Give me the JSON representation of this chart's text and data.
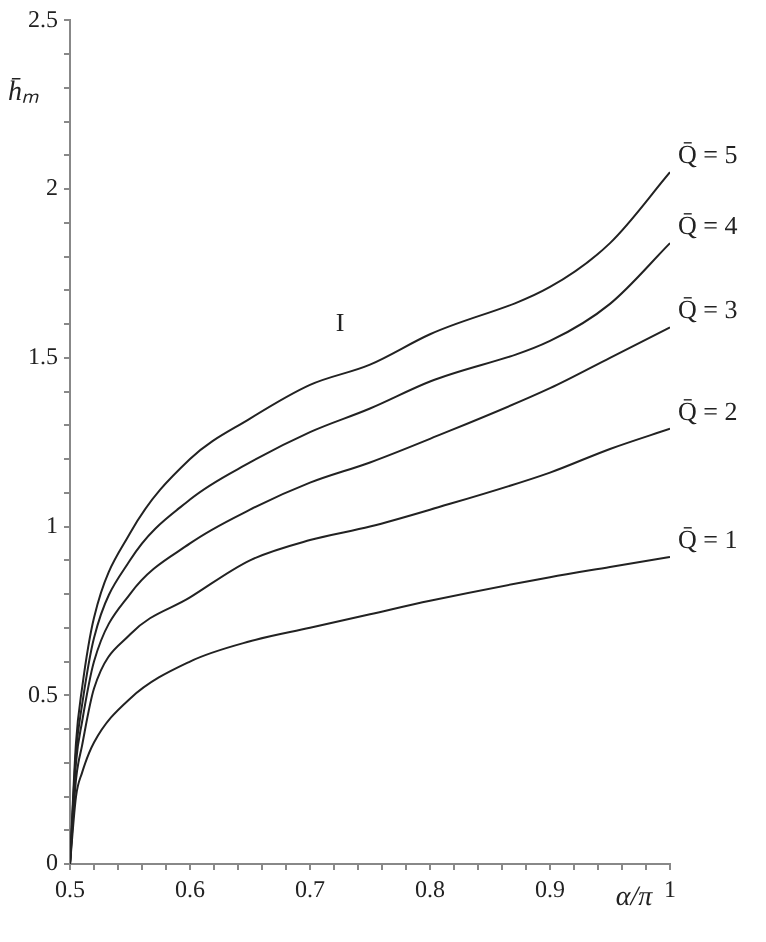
{
  "chart_data": {
    "type": "line",
    "xlabel": "α/π",
    "ylabel": "h̄ₘ",
    "x": [
      0.5,
      0.505,
      0.51,
      0.52,
      0.55,
      0.6,
      0.65,
      0.7,
      0.75,
      0.8,
      0.9,
      0.95,
      1
    ],
    "series": [
      {
        "name": "Q̄ = 1",
        "color": "#222222",
        "values": [
          0,
          0.2,
          0.27,
          0.36,
          0.49,
          0.6,
          0.66,
          0.7,
          0.74,
          0.78,
          0.85,
          0.88,
          0.91
        ]
      },
      {
        "name": "Q̄ = 2",
        "color": "#222222",
        "values": [
          0,
          0.25,
          0.35,
          0.52,
          0.68,
          0.79,
          0.9,
          0.96,
          1.0,
          1.05,
          1.16,
          1.23,
          1.29
        ]
      },
      {
        "name": "Q̄ = 3",
        "color": "#222222",
        "values": [
          0,
          0.3,
          0.42,
          0.6,
          0.8,
          0.95,
          1.05,
          1.13,
          1.19,
          1.26,
          1.41,
          1.5,
          1.59
        ]
      },
      {
        "name": "Q̄ = 4",
        "color": "#222222",
        "values": [
          0,
          0.33,
          0.47,
          0.67,
          0.9,
          1.08,
          1.19,
          1.28,
          1.35,
          1.43,
          1.55,
          1.66,
          1.84
        ]
      },
      {
        "name": "Q̄ = 5",
        "color": "#222222",
        "values": [
          0,
          0.36,
          0.52,
          0.73,
          0.98,
          1.2,
          1.32,
          1.42,
          1.48,
          1.57,
          1.71,
          1.84,
          2.05
        ]
      }
    ],
    "annotations": [
      "I"
    ],
    "xlim": [
      0.5,
      1
    ],
    "ylim": [
      0,
      2.5
    ],
    "xticks": [
      0.5,
      {
        "value": 0.52,
        "label": null
      },
      {
        "value": 0.54,
        "label": null
      },
      {
        "value": 0.56,
        "label": null
      },
      {
        "value": 0.58,
        "label": null
      },
      0.6,
      {
        "value": 0.62,
        "label": null
      },
      {
        "value": 0.64,
        "label": null
      },
      {
        "value": 0.66,
        "label": null
      },
      {
        "value": 0.68,
        "label": null
      },
      0.7,
      {
        "value": 0.72,
        "label": null
      },
      {
        "value": 0.74,
        "label": null
      },
      {
        "value": 0.76,
        "label": null
      },
      {
        "value": 0.78,
        "label": null
      },
      0.8,
      {
        "value": 0.82,
        "label": null
      },
      {
        "value": 0.84,
        "label": null
      },
      {
        "value": 0.86,
        "label": null
      },
      {
        "value": 0.88,
        "label": null
      },
      0.9,
      {
        "value": 0.92,
        "label": null
      },
      {
        "value": 0.94,
        "label": null
      },
      {
        "value": 0.96,
        "label": null
      },
      {
        "value": 0.98,
        "label": null
      },
      1
    ],
    "yticks": [
      0,
      {
        "value": 0.1,
        "label": null
      },
      {
        "value": 0.2,
        "label": null
      },
      {
        "value": 0.3,
        "label": null
      },
      {
        "value": 0.4,
        "label": null
      },
      0.5,
      {
        "value": 0.6,
        "label": null
      },
      {
        "value": 0.7,
        "label": null
      },
      {
        "value": 0.8,
        "label": null
      },
      {
        "value": 0.9,
        "label": null
      },
      1,
      {
        "value": 1.1,
        "label": null
      },
      {
        "value": 1.2,
        "label": null
      },
      {
        "value": 1.3,
        "label": null
      },
      {
        "value": 1.4,
        "label": null
      },
      1.5,
      {
        "value": 1.6,
        "label": null
      },
      {
        "value": 1.7,
        "label": null
      },
      {
        "value": 1.8,
        "label": null
      },
      {
        "value": 1.9,
        "label": null
      },
      2,
      {
        "value": 2.1,
        "label": null
      },
      {
        "value": 2.2,
        "label": null
      },
      {
        "value": 2.3,
        "label": null
      },
      {
        "value": 2.4,
        "label": null
      },
      2.5
    ],
    "grid": false,
    "legend": false,
    "marker": "none",
    "line_style": "solid"
  }
}
